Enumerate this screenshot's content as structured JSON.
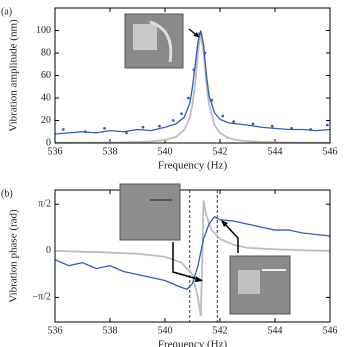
{
  "chart_data": [
    {
      "type": "line",
      "panel_label": "(a)",
      "xlabel": "Frequency (Hz)",
      "ylabel": "Vibration amplitude (nm)",
      "xlim": [
        536,
        546
      ],
      "xticks": [
        536,
        538,
        540,
        542,
        544,
        546
      ],
      "ylim": [
        0,
        120
      ],
      "yticks": [
        0,
        20,
        40,
        60,
        80,
        100
      ],
      "x": [
        536,
        536.5,
        537,
        537.5,
        538,
        538.5,
        539,
        539.5,
        540,
        540.4,
        540.7,
        540.9,
        541.0,
        541.1,
        541.2,
        541.3,
        541.4,
        541.5,
        541.6,
        541.8,
        542,
        542.3,
        542.6,
        543,
        543.5,
        544,
        544.5,
        545,
        545.5,
        546
      ],
      "series": [
        {
          "color": "#bdbdbd",
          "values": [
            0.2,
            0.2,
            0.3,
            0.3,
            0.4,
            0.6,
            0.9,
            1.4,
            2.7,
            5.5,
            11.6,
            22.7,
            34.3,
            53.6,
            81,
            98,
            81,
            53.6,
            34.3,
            15.9,
            8.8,
            4.5,
            2.7,
            1.6,
            1.0,
            0.6,
            0.5,
            0.3,
            0.3,
            0.2
          ]
        },
        {
          "color": "#2f5fb3",
          "values": [
            8,
            9,
            10,
            9,
            11,
            10,
            12,
            11,
            14,
            17,
            23,
            35,
            50,
            70,
            90,
            100,
            88,
            62,
            42,
            27,
            21,
            18,
            17,
            16,
            14,
            13,
            12,
            12,
            11,
            12
          ]
        },
        {
          "color": "#2f5fb3",
          "marker": "dot",
          "x": [
            536.3,
            537.1,
            537.8,
            538.6,
            539.2,
            539.8,
            540.3,
            540.6,
            540.85,
            541.05,
            541.25,
            541.45,
            541.7,
            542.1,
            542.5,
            543.2,
            543.9,
            544.6,
            545.3,
            545.9
          ],
          "values": [
            12,
            10,
            13,
            9,
            14,
            15,
            20,
            26,
            40,
            65,
            97,
            80,
            38,
            24,
            19,
            17,
            15,
            13,
            12,
            16
          ]
        }
      ]
    },
    {
      "type": "line",
      "panel_label": "(b)",
      "xlabel": "Frequency (Hz)",
      "ylabel": "Vibration phase (rad)",
      "xlim": [
        536,
        546
      ],
      "xticks": [
        536,
        538,
        540,
        542,
        544,
        546
      ],
      "ylim": [
        -2.4,
        2.05
      ],
      "yticks": [
        {
          "value": -1.5708,
          "label": "−π/2"
        },
        0,
        {
          "value": 1.5708,
          "label": "π/2"
        }
      ],
      "vlines": [
        540.9,
        541.9
      ],
      "x": [
        536,
        537,
        538,
        539,
        540,
        540.6,
        541.0,
        541.2,
        541.3,
        541.35,
        541.4,
        541.5,
        541.7,
        542,
        542.5,
        543,
        544,
        545,
        546
      ],
      "series": [
        {
          "color": "#bdbdbd",
          "values": [
            0,
            -0.03,
            -0.06,
            -0.1,
            -0.2,
            -0.4,
            -0.8,
            -1.6,
            -2.2,
            -0.5,
            1.7,
            1.2,
            0.7,
            0.4,
            0.2,
            0.1,
            0.05,
            0.02,
            0
          ]
        },
        {
          "color": "#2f5fb3",
          "x": [
            536,
            536.5,
            537,
            537.5,
            538,
            538.5,
            539,
            539.5,
            540,
            540.5,
            540.8,
            541,
            541.2,
            541.4,
            541.6,
            541.8,
            542,
            542.5,
            543,
            543.5,
            544,
            544.5,
            545,
            545.5,
            546
          ],
          "values": [
            -0.3,
            -0.5,
            -0.4,
            -0.6,
            -0.5,
            -0.7,
            -0.8,
            -0.9,
            -1.0,
            -1.2,
            -1.3,
            -1.1,
            -0.5,
            0.4,
            0.9,
            1.15,
            1.05,
            1.0,
            0.9,
            0.8,
            0.7,
            0.7,
            0.6,
            0.55,
            0.5
          ]
        }
      ]
    }
  ]
}
